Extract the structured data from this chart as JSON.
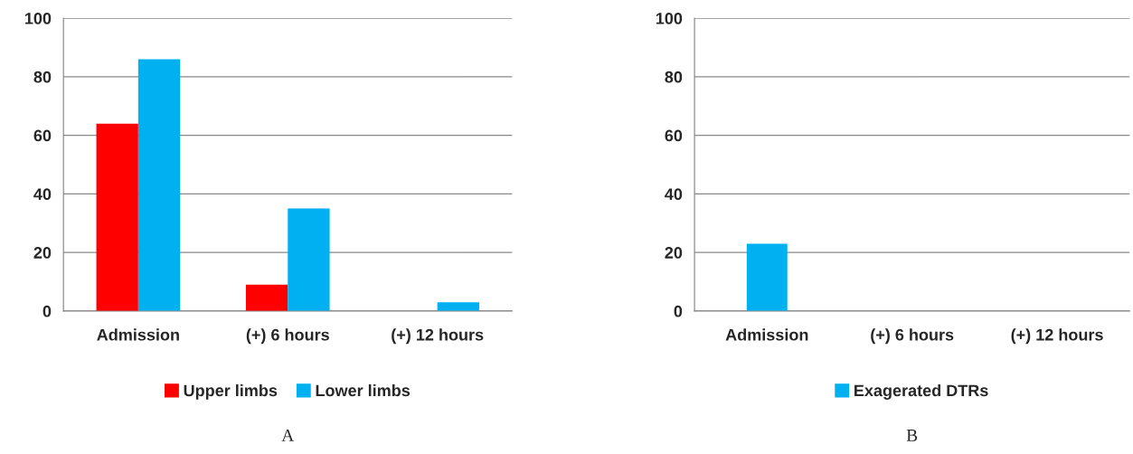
{
  "chart_data": [
    {
      "type": "bar",
      "categories": [
        "Admission",
        "(+) 6 hours",
        "(+) 12 hours"
      ],
      "series": [
        {
          "name": "Upper limbs",
          "color": "#ff0000",
          "values": [
            64,
            9,
            null
          ]
        },
        {
          "name": "Lower limbs",
          "color": "#00b0f0",
          "values": [
            86,
            35,
            3
          ]
        }
      ],
      "ylim": [
        0,
        100
      ],
      "yticks": [
        0,
        20,
        40,
        60,
        80,
        100
      ],
      "grid": "y",
      "legend": "bottom",
      "annotations": [
        "A"
      ]
    },
    {
      "type": "bar",
      "categories": [
        "Admission",
        "(+) 6 hours",
        "(+) 12 hours"
      ],
      "series": [
        {
          "name": "Exagerated DTRs",
          "color": "#00b0f0",
          "values": [
            23,
            null,
            null
          ]
        }
      ],
      "ylim": [
        0,
        100
      ],
      "yticks": [
        0,
        20,
        40,
        60,
        80,
        100
      ],
      "grid": "y",
      "legend": "bottom",
      "annotations": [
        "B"
      ]
    }
  ]
}
